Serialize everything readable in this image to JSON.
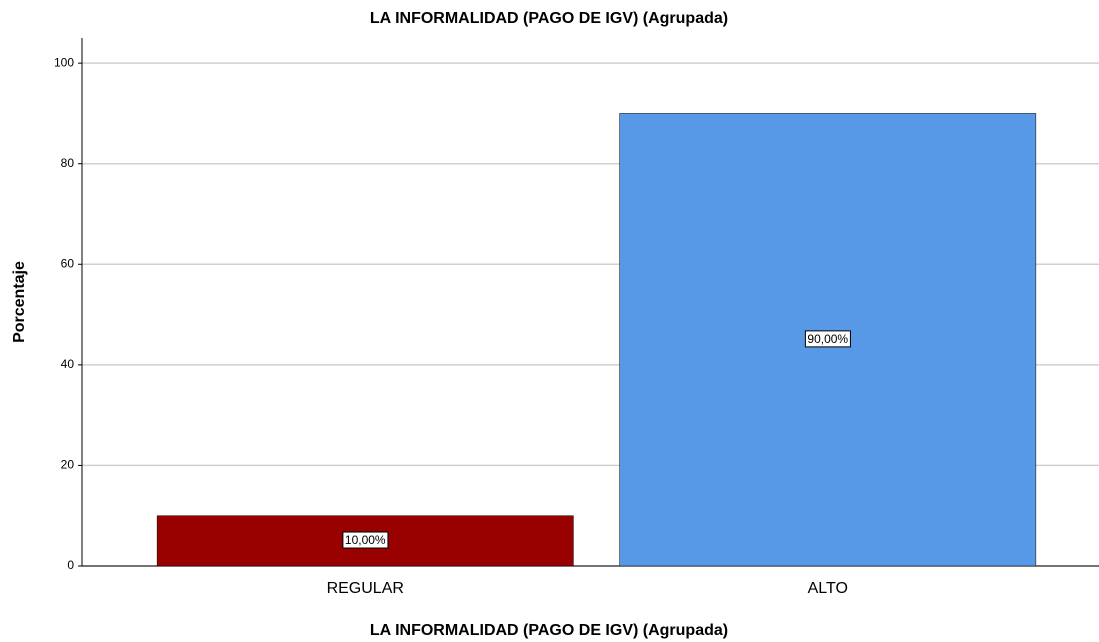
{
  "chart_data": {
    "type": "bar",
    "title": "LA INFORMALIDAD (PAGO DE IGV) (Agrupada)",
    "x_label": "LA INFORMALIDAD (PAGO DE IGV) (Agrupada)",
    "y_label": "Porcentaje",
    "categories": [
      "REGULAR",
      "ALTO"
    ],
    "values": [
      10,
      90
    ],
    "value_labels": [
      "10,00%",
      "90,00%"
    ],
    "colors": [
      "#990000",
      "#5799e6"
    ],
    "ylim": [
      0,
      105
    ],
    "yticks": [
      0,
      20,
      40,
      60,
      80,
      100
    ],
    "grid": true
  }
}
